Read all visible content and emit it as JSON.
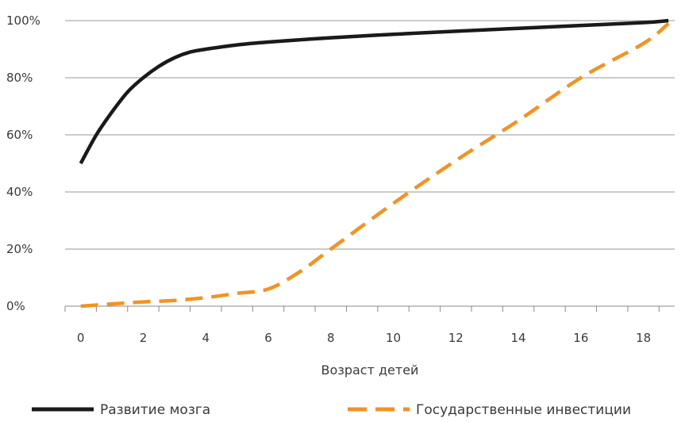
{
  "chart_data": {
    "type": "line",
    "title": "",
    "xlabel": "Возраст детей",
    "ylabel": "",
    "xlim": [
      -0.5,
      19.0
    ],
    "ylim": [
      0,
      100
    ],
    "x_ticks": [
      0,
      2,
      4,
      6,
      8,
      10,
      12,
      14,
      16,
      18
    ],
    "x_tick_labels": [
      "0",
      "2",
      "4",
      "6",
      "8",
      "10",
      "12",
      "14",
      "16",
      "18"
    ],
    "y_ticks": [
      0,
      20,
      40,
      60,
      80,
      100
    ],
    "y_tick_labels": [
      "0%",
      "20%",
      "40%",
      "60%",
      "80%",
      "100%"
    ],
    "grid": "horizontal",
    "legend_position": "bottom",
    "series": [
      {
        "name": "Развитие мозга",
        "color": "#1a1a1a",
        "style": "solid",
        "x": [
          0,
          0.5,
          1,
          1.5,
          2,
          2.5,
          3,
          3.5,
          4,
          5,
          6,
          8,
          10,
          12,
          14,
          16,
          18,
          18.8
        ],
        "values": [
          50,
          60,
          68,
          75,
          80,
          84,
          87,
          89,
          90,
          91.5,
          92.5,
          94,
          95.2,
          96.3,
          97.3,
          98.3,
          99.3,
          100
        ]
      },
      {
        "name": "Государственные инвестиции",
        "color": "#f39322",
        "style": "dashed",
        "x": [
          0,
          1,
          2,
          3,
          4,
          5,
          6,
          7,
          8,
          10,
          12,
          14,
          16,
          18,
          18.8
        ],
        "values": [
          0,
          0.8,
          1.5,
          2,
          3,
          4.5,
          6,
          12,
          20,
          36,
          51,
          65,
          80,
          92,
          99
        ]
      }
    ]
  }
}
